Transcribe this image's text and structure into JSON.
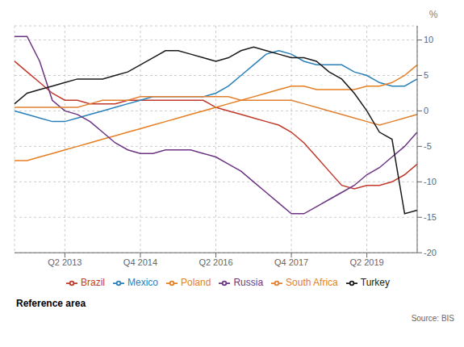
{
  "chart_data": {
    "type": "line",
    "ylabel": "%",
    "categories": [
      null,
      null,
      null,
      null,
      "Q2 2013",
      null,
      null,
      null,
      null,
      null,
      "Q4 2014",
      null,
      null,
      null,
      null,
      null,
      "Q2 2016",
      null,
      null,
      null,
      null,
      null,
      "Q4 2017",
      null,
      null,
      null,
      null,
      null,
      "Q2 2019",
      null,
      null,
      null,
      null
    ],
    "series": [
      {
        "name": "Brazil",
        "color": "#c0392b",
        "values": [
          7.0,
          5.5,
          4.0,
          2.5,
          1.5,
          1.5,
          1.0,
          1.0,
          1.0,
          1.5,
          1.5,
          1.5,
          1.5,
          1.5,
          1.5,
          1.5,
          0.5,
          0.0,
          -0.5,
          -1.0,
          -1.5,
          -2.0,
          -3.0,
          -4.5,
          -6.5,
          -8.5,
          -10.5,
          -11.0,
          -10.5,
          -10.5,
          -10.0,
          -9.0,
          -7.5
        ]
      },
      {
        "name": "Mexico",
        "color": "#2980b9",
        "values": [
          0.0,
          -0.5,
          -1.0,
          -1.5,
          -1.5,
          -1.0,
          -0.5,
          0.0,
          0.5,
          1.0,
          1.5,
          2.0,
          2.0,
          2.0,
          2.0,
          2.0,
          2.5,
          3.5,
          5.0,
          6.5,
          8.0,
          8.5,
          8.0,
          7.0,
          6.5,
          6.5,
          6.5,
          5.5,
          5.0,
          4.0,
          3.5,
          3.5,
          4.5
        ]
      },
      {
        "name": "Poland",
        "color": "#e67e22",
        "values": [
          -7.0,
          -7.0,
          -6.5,
          -6.0,
          -5.5,
          -5.0,
          -4.5,
          -4.0,
          -3.5,
          -3.0,
          -2.5,
          -2.0,
          -1.5,
          -1.0,
          -0.5,
          0.0,
          0.5,
          1.0,
          1.5,
          2.0,
          2.5,
          3.0,
          3.5,
          3.5,
          3.0,
          3.0,
          3.0,
          3.0,
          3.5,
          3.5,
          4.0,
          5.0,
          6.5
        ]
      },
      {
        "name": "Russia",
        "color": "#6c3483",
        "values": [
          10.5,
          10.5,
          7.0,
          1.5,
          0.0,
          -0.5,
          -1.5,
          -3.0,
          -4.5,
          -5.5,
          -6.0,
          -6.0,
          -5.5,
          -5.5,
          -5.5,
          -6.0,
          -6.5,
          -7.5,
          -8.5,
          -10.0,
          -11.5,
          -13.0,
          -14.5,
          -14.5,
          -13.5,
          -12.5,
          -11.5,
          -10.5,
          -9.0,
          -8.0,
          -6.5,
          -5.0,
          -3.0
        ]
      },
      {
        "name": "South Africa",
        "color": "#e08030",
        "values": [
          0.5,
          0.5,
          0.5,
          0.5,
          0.5,
          0.5,
          1.0,
          1.5,
          1.5,
          1.5,
          2.0,
          2.0,
          2.0,
          2.0,
          2.0,
          2.0,
          2.0,
          2.0,
          1.5,
          1.5,
          1.5,
          1.5,
          1.5,
          1.0,
          0.5,
          0.0,
          -0.5,
          -1.0,
          -1.5,
          -2.0,
          -1.5,
          -1.0,
          -0.5
        ]
      },
      {
        "name": "Turkey",
        "color": "#1a1a1a",
        "values": [
          1.0,
          2.5,
          3.0,
          3.5,
          4.0,
          4.5,
          4.5,
          4.5,
          5.0,
          5.5,
          6.5,
          7.5,
          8.5,
          8.5,
          8.0,
          7.5,
          7.0,
          7.5,
          8.5,
          9.0,
          8.5,
          8.0,
          7.5,
          7.5,
          7.0,
          5.5,
          4.5,
          2.5,
          0.0,
          -3.0,
          -4.0,
          -14.5,
          -14.0
        ]
      }
    ],
    "ylim": [
      -20,
      12
    ],
    "yticks": [
      -20,
      -15,
      -10,
      -5,
      0,
      5,
      10
    ],
    "grid": true,
    "legend": "bottom",
    "annotations": [
      "Reference area",
      "Source: BIS"
    ]
  }
}
